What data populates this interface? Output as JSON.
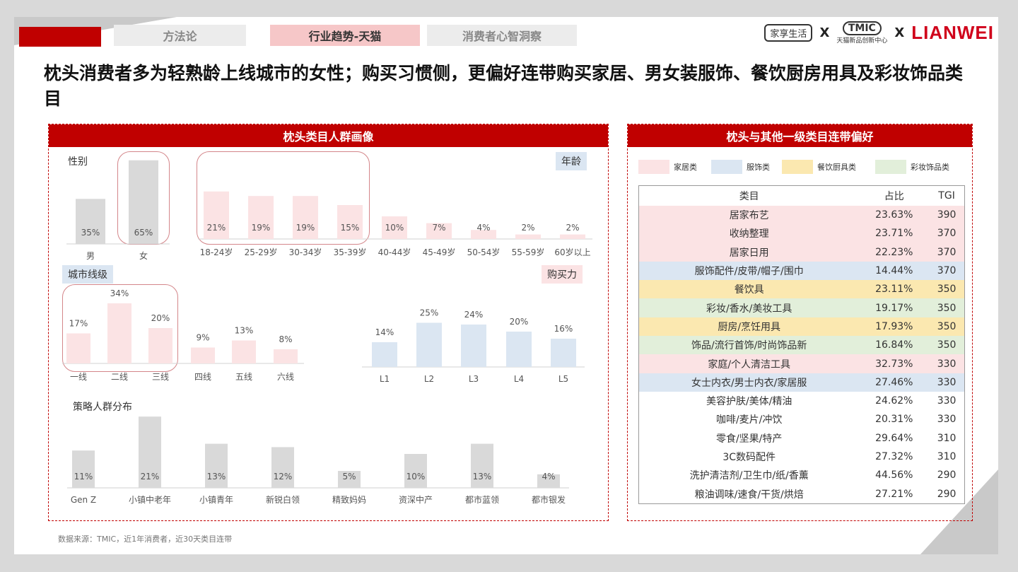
{
  "nav": {
    "tabs": [
      {
        "label": "方法论",
        "active": false
      },
      {
        "label": "行业趋势-天猫",
        "active": true
      },
      {
        "label": "消费者心智洞察",
        "active": false
      }
    ]
  },
  "logos": {
    "brand1": "家享生活",
    "x": "X",
    "tmic": "TMIC",
    "tmic_sub": "天猫新品创新中心",
    "lianwei": "LIANWEI"
  },
  "headline": "枕头消费者多为轻熟龄上线城市的女性；购买习惯侧，更偏好连带购买家居、男女装服饰、餐饮厨房用具及彩妆饰品类目",
  "left_panel": {
    "title": "枕头类目人群画像",
    "gender_label": "性别",
    "age_label": "年龄",
    "city_label": "城市线级",
    "power_label": "购买力",
    "strategy_label": "策略人群分布"
  },
  "right_panel": {
    "title": "枕头与其他一级类目连带偏好",
    "legend": [
      {
        "label": "家居类",
        "color": "#fbe3e4"
      },
      {
        "label": "服饰类",
        "color": "#dbe6f2"
      },
      {
        "label": "餐饮厨具类",
        "color": "#fbe8b0"
      },
      {
        "label": "彩妆饰品类",
        "color": "#e2efda"
      }
    ],
    "table": {
      "headers": [
        "类目",
        "占比",
        "TGI"
      ],
      "rows": [
        {
          "cat": "居家布艺",
          "pct": "23.63%",
          "tgi": "390",
          "color": "#fbe3e4"
        },
        {
          "cat": "收纳整理",
          "pct": "23.71%",
          "tgi": "370",
          "color": "#fbe3e4"
        },
        {
          "cat": "居家日用",
          "pct": "22.23%",
          "tgi": "370",
          "color": "#fbe3e4"
        },
        {
          "cat": "服饰配件/皮带/帽子/围巾",
          "pct": "14.44%",
          "tgi": "370",
          "color": "#dbe6f2"
        },
        {
          "cat": "餐饮具",
          "pct": "23.11%",
          "tgi": "350",
          "color": "#fbe8b0"
        },
        {
          "cat": "彩妆/香水/美妆工具",
          "pct": "19.17%",
          "tgi": "350",
          "color": "#e2efda"
        },
        {
          "cat": "厨房/烹饪用具",
          "pct": "17.93%",
          "tgi": "350",
          "color": "#fbe8b0"
        },
        {
          "cat": "饰品/流行首饰/时尚饰品新",
          "pct": "16.84%",
          "tgi": "350",
          "color": "#e2efda"
        },
        {
          "cat": "家庭/个人清洁工具",
          "pct": "32.73%",
          "tgi": "330",
          "color": "#fbe3e4"
        },
        {
          "cat": "女士内衣/男士内衣/家居服",
          "pct": "27.46%",
          "tgi": "330",
          "color": "#dbe6f2"
        },
        {
          "cat": "美容护肤/美体/精油",
          "pct": "24.62%",
          "tgi": "330",
          "color": "#ffffff"
        },
        {
          "cat": "咖啡/麦片/冲饮",
          "pct": "20.31%",
          "tgi": "330",
          "color": "#ffffff"
        },
        {
          "cat": "零食/坚果/特产",
          "pct": "29.64%",
          "tgi": "310",
          "color": "#ffffff"
        },
        {
          "cat": "3C数码配件",
          "pct": "27.32%",
          "tgi": "310",
          "color": "#ffffff"
        },
        {
          "cat": "洗护清洁剂/卫生巾/纸/香薰",
          "pct": "44.56%",
          "tgi": "290",
          "color": "#ffffff"
        },
        {
          "cat": "粮油调味/速食/干货/烘焙",
          "pct": "27.21%",
          "tgi": "290",
          "color": "#ffffff"
        }
      ]
    }
  },
  "source": "数据来源：TMIC，近1年消费者，近30天类目连带",
  "chart_data": [
    {
      "type": "bar",
      "title": "性别",
      "categories": [
        "男",
        "女"
      ],
      "values": [
        35,
        65
      ],
      "labels": [
        "35%",
        "65%"
      ],
      "color": "#d9d9d9"
    },
    {
      "type": "bar",
      "title": "年龄",
      "categories": [
        "18-24岁",
        "25-29岁",
        "30-34岁",
        "35-39岁",
        "40-44岁",
        "45-49岁",
        "50-54岁",
        "55-59岁",
        "60岁以上"
      ],
      "values": [
        21,
        19,
        19,
        15,
        10,
        7,
        4,
        2,
        2
      ],
      "labels": [
        "21%",
        "19%",
        "19%",
        "15%",
        "10%",
        "7%",
        "4%",
        "2%",
        "2%"
      ],
      "color": "#fbe3e4"
    },
    {
      "type": "bar",
      "title": "城市线级",
      "categories": [
        "一线",
        "二线",
        "三线",
        "四线",
        "五线",
        "六线"
      ],
      "values": [
        17,
        34,
        20,
        9,
        13,
        8
      ],
      "labels": [
        "17%",
        "34%",
        "20%",
        "9%",
        "13%",
        "8%"
      ],
      "color": "#fbe3e4"
    },
    {
      "type": "bar",
      "title": "购买力",
      "categories": [
        "L1",
        "L2",
        "L3",
        "L4",
        "L5"
      ],
      "values": [
        14,
        25,
        24,
        20,
        16
      ],
      "labels": [
        "14%",
        "25%",
        "24%",
        "20%",
        "16%"
      ],
      "color": "#dbe6f2"
    },
    {
      "type": "bar",
      "title": "策略人群分布",
      "categories": [
        "Gen Z",
        "小镇中老年",
        "小镇青年",
        "新锐白领",
        "精致妈妈",
        "资深中产",
        "都市蓝领",
        "都市银发"
      ],
      "values": [
        11,
        21,
        13,
        12,
        5,
        10,
        13,
        4
      ],
      "labels": [
        "11%",
        "21%",
        "13%",
        "12%",
        "5%",
        "10%",
        "13%",
        "4%"
      ],
      "color": "#d9d9d9"
    }
  ]
}
